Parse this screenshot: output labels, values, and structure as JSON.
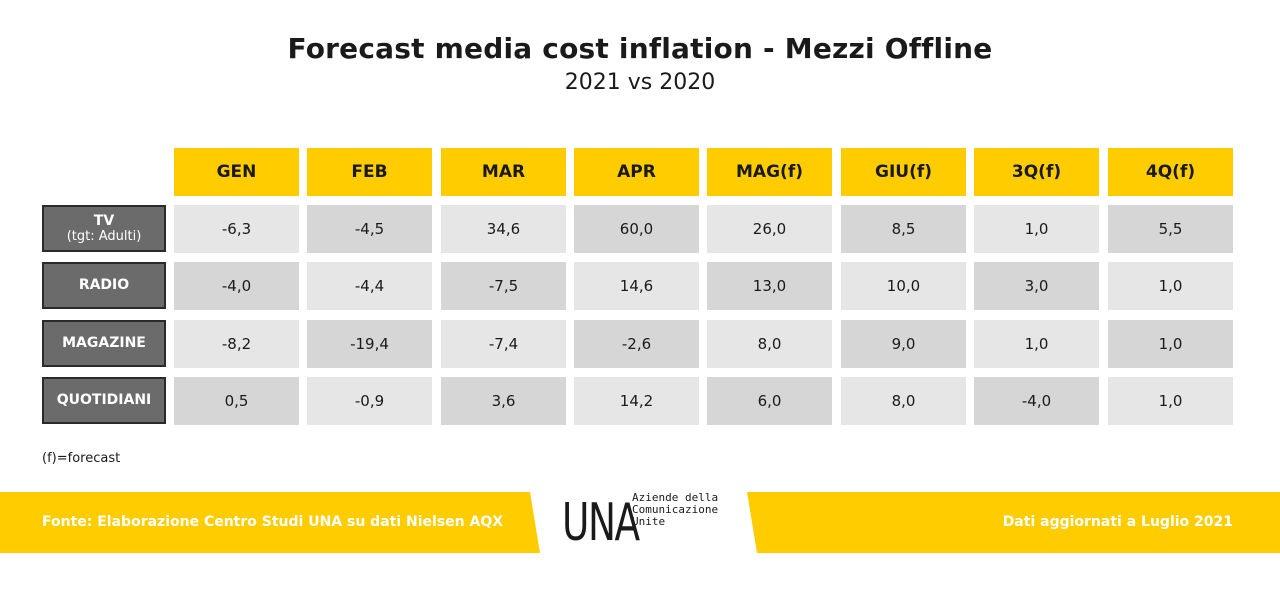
{
  "title": "Forecast media cost inflation - Mezzi Offline",
  "subtitle": "2021 vs 2020",
  "chart_data": {
    "type": "table",
    "columns": [
      "GEN",
      "FEB",
      "MAR",
      "APR",
      "MAG(f)",
      "GIU(f)",
      "3Q(f)",
      "4Q(f)"
    ],
    "rows": [
      {
        "label": "TV",
        "sublabel": "(tgt: Adulti)",
        "values": [
          "-6,3",
          "-4,5",
          "34,6",
          "60,0",
          "26,0",
          "8,5",
          "1,0",
          "5,5"
        ]
      },
      {
        "label": "RADIO",
        "sublabel": "",
        "values": [
          "-4,0",
          "-4,4",
          "-7,5",
          "14,6",
          "13,0",
          "10,0",
          "3,0",
          "1,0"
        ]
      },
      {
        "label": "MAGAZINE",
        "sublabel": "",
        "values": [
          "-8,2",
          "-19,4",
          "-7,4",
          "-2,6",
          "8,0",
          "9,0",
          "1,0",
          "1,0"
        ]
      },
      {
        "label": "QUOTIDIANI",
        "sublabel": "",
        "values": [
          "0,5",
          "-0,9",
          "3,6",
          "14,2",
          "6,0",
          "8,0",
          "-4,0",
          "1,0"
        ]
      }
    ]
  },
  "footnote": "(f)=forecast",
  "source": "Fonte: Elaborazione Centro Studi UNA su dati Nielsen AQX",
  "updated": "Dati aggiornati a Luglio 2021",
  "logo": {
    "mark": "UNA",
    "line1": "Aziende della",
    "line2": "Comunicazione",
    "line3": "Unite"
  },
  "colors": {
    "accent": "#ffcc00",
    "row_label_bg": "#6b6b6b",
    "cell_light": "#e6e6e6",
    "cell_dark": "#d6d6d6"
  }
}
